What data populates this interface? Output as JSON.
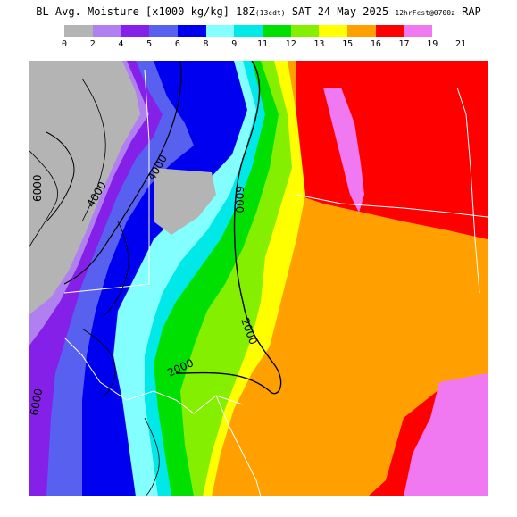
{
  "title": {
    "main": "BL Avg. Moisture [x1000 kg/kg] 18Z",
    "local_time": "(13cdt)",
    "date": "SAT 24 May 2025",
    "run": "12hrFcst@0700z",
    "model": "RAP"
  },
  "legend": {
    "colors": [
      "#b4b4b4",
      "#b080f0",
      "#8420e8",
      "#5860f0",
      "#0000f0",
      "#84ffff",
      "#00e8e8",
      "#00e000",
      "#84f000",
      "#ffff00",
      "#ffa000",
      "#ff0000",
      "#f078f0"
    ],
    "levels": [
      "0",
      "2",
      "4",
      "5",
      "6",
      "8",
      "9",
      "11",
      "12",
      "13",
      "15",
      "16",
      "17",
      "19",
      "21"
    ]
  },
  "map": {
    "contour_labels": [
      {
        "text": "6000"
      },
      {
        "text": "4000"
      },
      {
        "text": "4000"
      },
      {
        "text": "6000"
      },
      {
        "text": "2000"
      },
      {
        "text": "2000"
      },
      {
        "text": "6000"
      }
    ]
  }
}
